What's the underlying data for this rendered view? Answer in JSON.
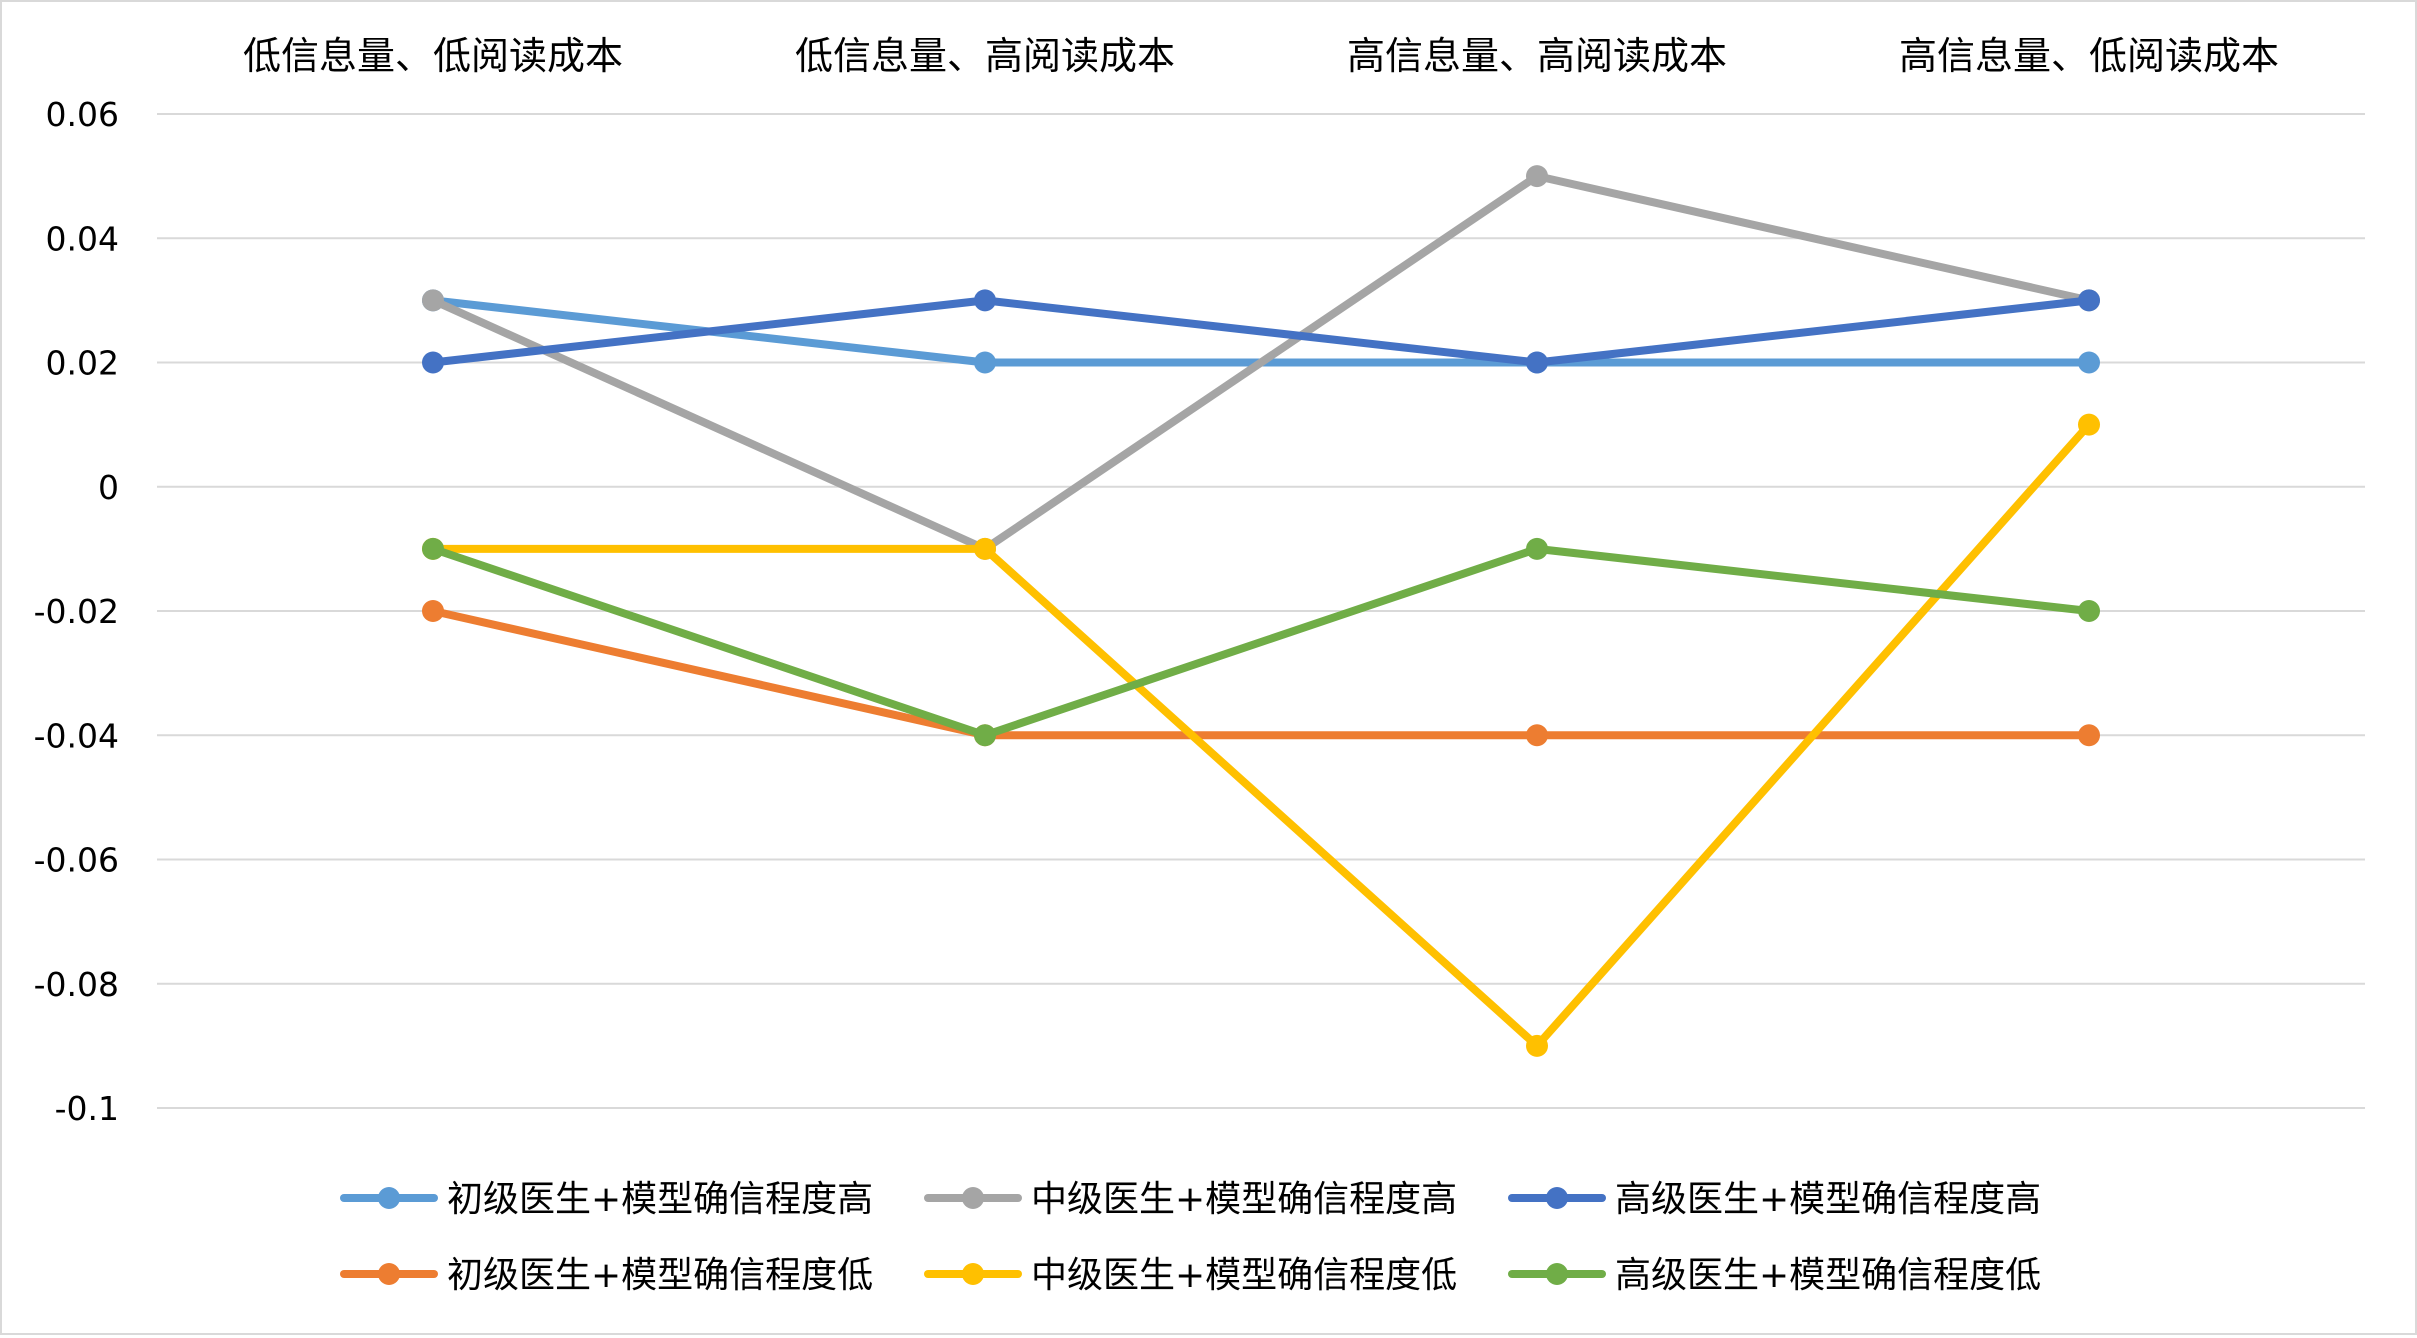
{
  "chart_data": {
    "type": "line",
    "title": "",
    "xlabel": "",
    "ylabel": "",
    "categories": [
      "低信息量、低阅读成本",
      "低信息量、高阅读成本",
      "高信息量、高阅读成本",
      "高信息量、低阅读成本"
    ],
    "ylim": [
      -0.1,
      0.06
    ],
    "yticks": [
      0.06,
      0.04,
      0.02,
      0,
      -0.02,
      -0.04,
      -0.06,
      -0.08,
      -0.1
    ],
    "ytick_labels": [
      "0.06",
      "0.04",
      "0.02",
      "0",
      "-0.02",
      "-0.04",
      "-0.06",
      "-0.08",
      "-0.1"
    ],
    "grid": true,
    "x_axis_position": "top",
    "legend_position": "bottom",
    "series": [
      {
        "name": "初级医生+模型确信程度高",
        "color": "#5b9bd5",
        "values": [
          0.03,
          0.02,
          0.02,
          0.02
        ]
      },
      {
        "name": "中级医生+模型确信程度高",
        "color": "#a5a5a5",
        "values": [
          0.03,
          -0.01,
          0.05,
          0.03
        ]
      },
      {
        "name": "高级医生+模型确信程度高",
        "color": "#4472c4",
        "values": [
          0.02,
          0.03,
          0.02,
          0.03
        ]
      },
      {
        "name": "初级医生+模型确信程度低",
        "color": "#ed7d31",
        "values": [
          -0.02,
          -0.04,
          -0.04,
          -0.04
        ]
      },
      {
        "name": "中级医生+模型确信程度低",
        "color": "#ffc000",
        "values": [
          -0.01,
          -0.01,
          -0.09,
          0.01
        ]
      },
      {
        "name": "高级医生+模型确信程度低",
        "color": "#70ad47",
        "values": [
          -0.01,
          -0.04,
          -0.01,
          -0.02
        ]
      }
    ]
  }
}
